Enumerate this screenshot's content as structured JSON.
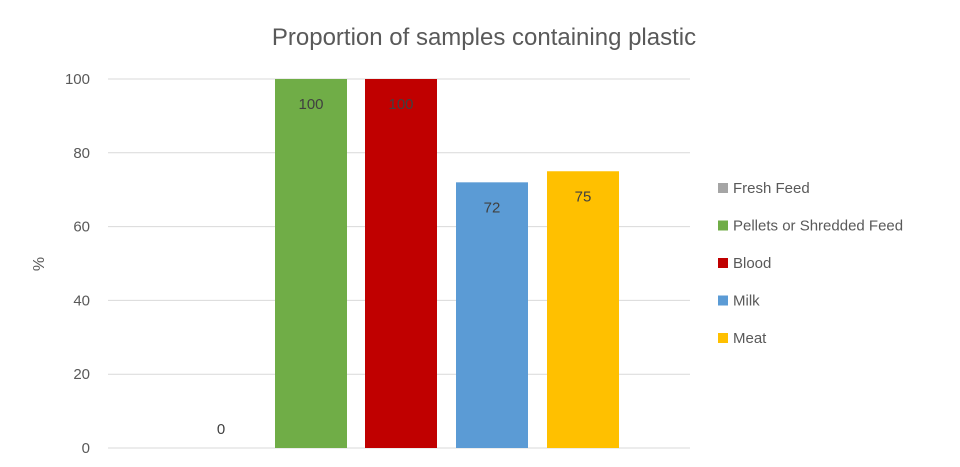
{
  "chart_data": {
    "type": "bar",
    "title": "Proportion of samples containing plastic",
    "ylabel": "%",
    "xlabel": "",
    "ylim": [
      0,
      100
    ],
    "yticks": [
      0,
      20,
      40,
      60,
      80,
      100
    ],
    "grid": true,
    "legend_position": "right",
    "series": [
      {
        "name": "Fresh Feed",
        "value": 0,
        "color": "#a5a5a5",
        "label": "0"
      },
      {
        "name": "Pellets or Shredded Feed",
        "value": 100,
        "color": "#70ad47",
        "label": "100"
      },
      {
        "name": "Blood",
        "value": 100,
        "color": "#c00000",
        "label": "100"
      },
      {
        "name": "Milk",
        "value": 72,
        "color": "#5b9bd5",
        "label": "72"
      },
      {
        "name": "Meat",
        "value": 75,
        "color": "#ffc000",
        "label": "75"
      }
    ]
  }
}
